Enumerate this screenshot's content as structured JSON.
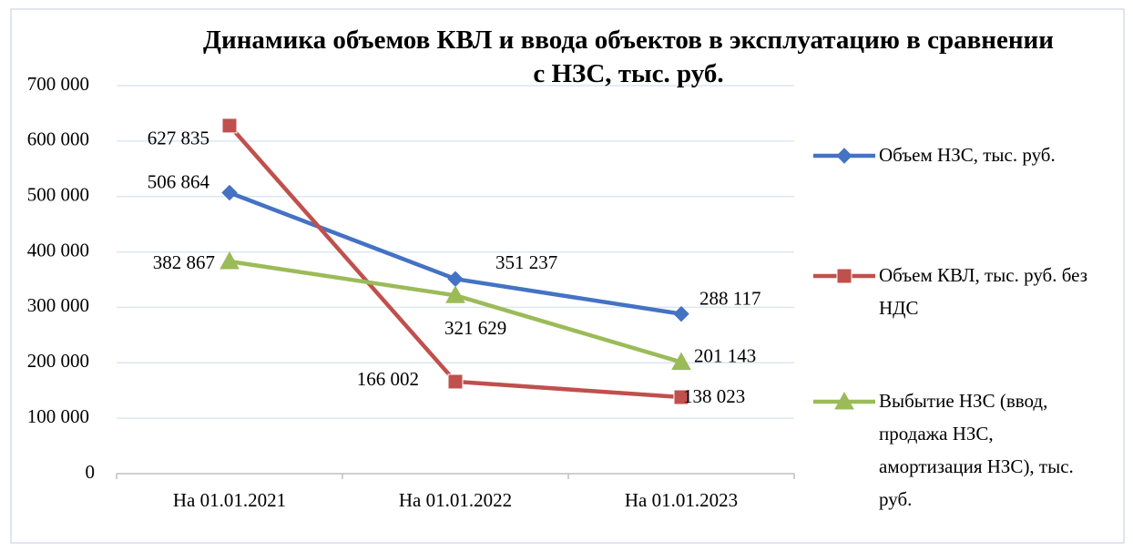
{
  "chart_data": {
    "type": "line",
    "title": "Динамика объемов КВЛ и ввода объектов в эксплуатацию в сравнении с НЗС, тыс. руб.",
    "categories": [
      "На 01.01.2021",
      "На 01.01.2022",
      "На 01.01.2023"
    ],
    "series": [
      {
        "name": "Объем НЗС, тыс. руб.",
        "color": "#4472c4",
        "marker": "diamond",
        "values": [
          506864,
          351237,
          288117
        ],
        "value_labels": [
          "506 864",
          "351 237",
          "288 117"
        ]
      },
      {
        "name": "Объем КВЛ, тыс. руб. без НДС",
        "color": "#c0504d",
        "marker": "square",
        "values": [
          627835,
          166002,
          138023
        ],
        "value_labels": [
          "627 835",
          "166 002",
          "138 023"
        ]
      },
      {
        "name": "Выбытие НЗС  (ввод, продажа НЗС, амортизация НЗС), тыс. руб.",
        "color": "#9bbb59",
        "marker": "triangle",
        "values": [
          382867,
          321629,
          201143
        ],
        "value_labels": [
          "382 867",
          "321 629",
          "201 143"
        ]
      }
    ],
    "ylim": [
      0,
      700000
    ],
    "yticks": [
      0,
      {
        "value": 100000,
        "label": "100 000"
      },
      {
        "value": 200000,
        "label": "200 000"
      },
      {
        "value": 300000,
        "label": "300 000"
      },
      {
        "value": 400000,
        "label": "400 000"
      },
      {
        "value": 500000,
        "label": "500 000"
      },
      {
        "value": 600000,
        "label": "600 000"
      },
      {
        "value": 700000,
        "label": "700 000"
      }
    ],
    "grid": true,
    "legend": "right"
  }
}
